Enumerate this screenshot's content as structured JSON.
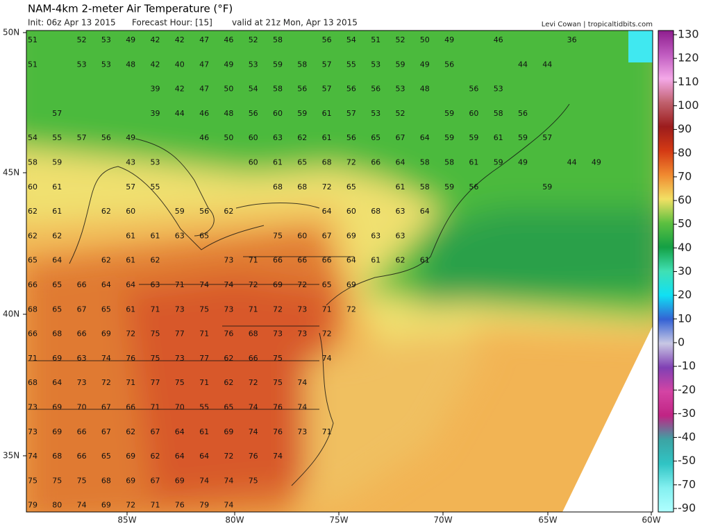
{
  "header": {
    "title": "NAM-4km 2-meter Air Temperature (°F)",
    "init": "Init: 06z Apr 13 2015",
    "forecast_hour": "Forecast Hour: [15]",
    "valid": "valid at 21z Mon, Apr 13 2015",
    "credit": "Levi Cowan | tropicaltidbits.com"
  },
  "lat_labels": [
    "50N",
    "45N",
    "40N",
    "35N"
  ],
  "lon_labels": [
    "85W",
    "80W",
    "75W",
    "70W",
    "65W",
    "60W"
  ],
  "colorbar": {
    "ticks": [
      130,
      120,
      110,
      100,
      90,
      80,
      70,
      60,
      50,
      40,
      30,
      20,
      10,
      0,
      -10,
      -20,
      -30,
      -40,
      -50,
      -70,
      -90
    ],
    "colors": [
      "#8e1e8e",
      "#c05cc0",
      "#f4a8e8",
      "#c0606c",
      "#9c1c1c",
      "#d43a14",
      "#f08a30",
      "#f2e064",
      "#5cc040",
      "#14a044",
      "#40e0b4",
      "#10e0f4",
      "#3462d4",
      "#c8c8e4",
      "#8040b4",
      "#d444a4",
      "#c02484",
      "#3ca4a4",
      "#30c4c4",
      "#84f0f0",
      "#b0ffff"
    ]
  },
  "station_grid": [
    [
      51,
      null,
      52,
      53,
      49,
      42,
      42,
      47,
      46,
      52,
      58,
      null,
      56,
      54,
      51,
      52,
      50,
      49,
      null,
      46,
      null,
      null,
      36,
      null
    ],
    [
      51,
      null,
      53,
      53,
      48,
      42,
      40,
      47,
      49,
      53,
      59,
      58,
      57,
      55,
      53,
      59,
      49,
      56,
      null,
      null,
      44,
      44,
      null,
      null
    ],
    [
      null,
      null,
      null,
      null,
      null,
      39,
      42,
      47,
      50,
      54,
      58,
      56,
      57,
      56,
      56,
      53,
      48,
      null,
      56,
      53,
      null,
      null,
      null,
      null
    ],
    [
      null,
      57,
      null,
      null,
      null,
      39,
      44,
      46,
      48,
      56,
      60,
      59,
      61,
      57,
      53,
      52,
      null,
      59,
      60,
      58,
      56,
      null,
      null,
      null
    ],
    [
      54,
      55,
      57,
      56,
      49,
      null,
      null,
      46,
      50,
      60,
      63,
      62,
      61,
      56,
      65,
      67,
      64,
      59,
      59,
      61,
      59,
      57,
      null,
      null
    ],
    [
      58,
      59,
      null,
      null,
      43,
      53,
      null,
      null,
      null,
      60,
      61,
      65,
      68,
      72,
      66,
      64,
      58,
      58,
      61,
      59,
      49,
      null,
      44,
      49
    ],
    [
      60,
      61,
      null,
      null,
      57,
      55,
      null,
      null,
      null,
      null,
      68,
      68,
      72,
      65,
      null,
      61,
      58,
      59,
      56,
      null,
      null,
      59,
      null,
      null
    ],
    [
      62,
      61,
      null,
      62,
      60,
      null,
      59,
      56,
      62,
      null,
      null,
      null,
      64,
      60,
      68,
      63,
      64,
      null,
      null,
      null,
      null,
      null,
      null,
      null
    ],
    [
      62,
      62,
      null,
      null,
      61,
      61,
      63,
      65,
      null,
      null,
      75,
      60,
      67,
      69,
      63,
      63,
      null,
      null,
      null,
      null,
      null,
      null,
      null,
      null
    ],
    [
      65,
      64,
      null,
      62,
      61,
      62,
      null,
      null,
      73,
      71,
      66,
      66,
      66,
      64,
      61,
      62,
      61,
      null,
      null,
      null,
      null,
      null,
      null,
      null
    ],
    [
      66,
      65,
      66,
      64,
      64,
      63,
      71,
      74,
      74,
      72,
      69,
      72,
      65,
      69,
      null,
      null,
      null,
      null,
      null,
      null,
      null,
      null,
      null,
      null
    ],
    [
      68,
      65,
      67,
      65,
      61,
      71,
      73,
      75,
      73,
      71,
      72,
      73,
      71,
      72,
      null,
      null,
      null,
      null,
      null,
      null,
      null,
      null,
      null,
      null
    ],
    [
      66,
      68,
      66,
      69,
      72,
      75,
      77,
      71,
      76,
      68,
      73,
      73,
      72,
      null,
      null,
      null,
      null,
      null,
      null,
      null,
      null,
      null,
      null,
      null
    ],
    [
      71,
      69,
      63,
      74,
      76,
      75,
      73,
      77,
      62,
      66,
      75,
      null,
      74,
      null,
      null,
      null,
      null,
      null,
      null,
      null,
      null,
      null,
      null,
      null
    ],
    [
      68,
      64,
      73,
      72,
      71,
      77,
      75,
      71,
      62,
      72,
      75,
      74,
      null,
      null,
      null,
      null,
      null,
      null,
      null,
      null,
      null,
      null,
      null,
      null
    ],
    [
      73,
      69,
      70,
      67,
      66,
      71,
      70,
      55,
      65,
      74,
      76,
      74,
      null,
      null,
      null,
      null,
      null,
      null,
      null,
      null,
      null,
      null,
      null,
      null
    ],
    [
      73,
      69,
      66,
      67,
      62,
      67,
      64,
      61,
      69,
      74,
      76,
      73,
      71,
      null,
      null,
      null,
      null,
      null,
      null,
      null,
      null,
      null,
      null,
      null
    ],
    [
      74,
      68,
      66,
      65,
      69,
      62,
      64,
      64,
      72,
      76,
      74,
      null,
      null,
      null,
      null,
      null,
      null,
      null,
      null,
      null,
      null,
      null,
      null,
      null
    ],
    [
      75,
      75,
      75,
      68,
      69,
      67,
      69,
      74,
      74,
      75,
      null,
      null,
      null,
      null,
      null,
      null,
      null,
      null,
      null,
      null,
      null,
      null,
      null,
      null
    ],
    [
      79,
      80,
      74,
      69,
      72,
      71,
      76,
      79,
      74,
      null,
      null,
      null,
      null,
      null,
      null,
      null,
      null,
      null,
      null,
      null,
      null,
      null,
      null,
      null
    ]
  ]
}
